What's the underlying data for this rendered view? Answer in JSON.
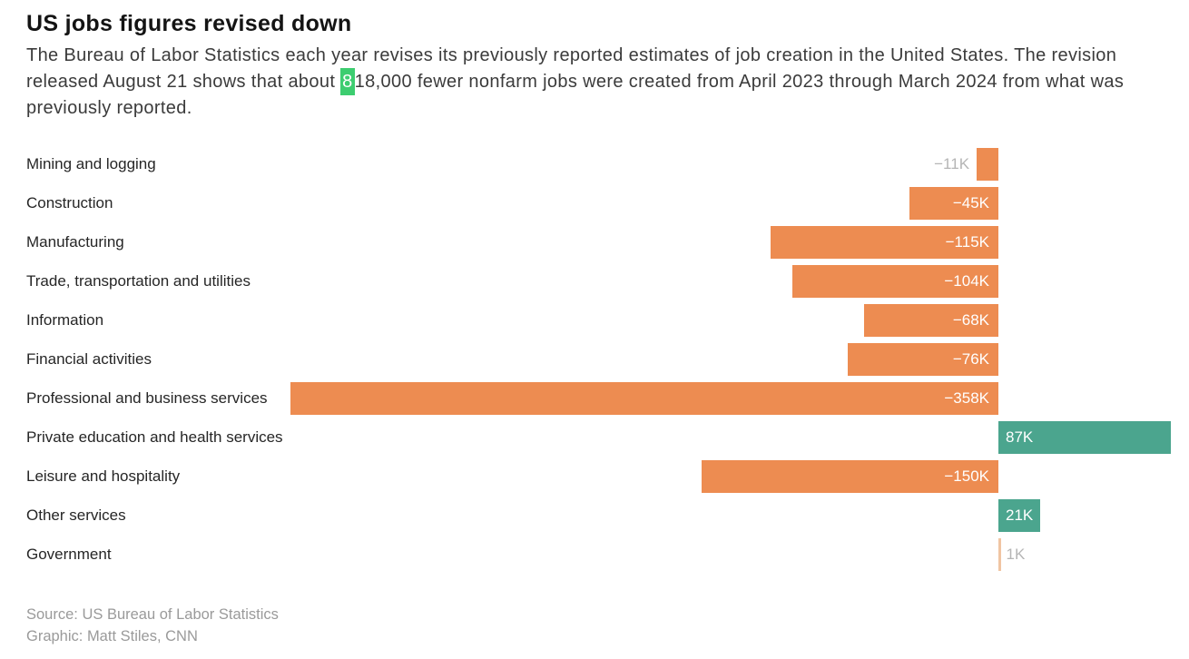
{
  "header": {
    "title": "US jobs figures revised down"
  },
  "description": {
    "lines": [
      [
        {
          "text": "The Bureau of Labor Statistics each year revises its previously reported estimates of job creation in the United States. The revision"
        }
      ],
      [
        {
          "text": "released August 21 shows that about "
        },
        {
          "text": "8",
          "highlight": true
        },
        {
          "text": "18,000 fewer nonfarm jobs were created from April 2023 through March 2024 from what was"
        }
      ],
      [
        {
          "text": "previously reported."
        }
      ]
    ],
    "highlight_color": "#3dcd70"
  },
  "chart_data": {
    "type": "bar",
    "orientation": "horizontal",
    "title": "US jobs figures revised down",
    "categories": [
      "Mining and logging",
      "Construction",
      "Manufacturing",
      "Trade, transportation and utilities",
      "Information",
      "Financial activities",
      "Professional and business services",
      "Private education and health services",
      "Leisure and hospitality",
      "Other services",
      "Government"
    ],
    "values": [
      -11,
      -45,
      -115,
      -104,
      -68,
      -76,
      -358,
      87,
      -150,
      21,
      1
    ],
    "value_labels": [
      "−11K",
      "−45K",
      "−115K",
      "−104K",
      "−68K",
      "−76K",
      "−358K",
      "87K",
      "−150K",
      "21K",
      "1K"
    ],
    "unit": "thousands of jobs",
    "xlim": [
      -380,
      97
    ],
    "grid": false,
    "legend": false,
    "colors": {
      "negative": "#ed8c51",
      "positive": "#4ba58e",
      "tiny_positive": "#f0c5a3",
      "inside_label": "#ffffff",
      "outside_label": "#b5b5b5"
    }
  },
  "footer": {
    "source": "Source: US Bureau of Labor Statistics",
    "credit": "Graphic: Matt Stiles, CNN"
  }
}
